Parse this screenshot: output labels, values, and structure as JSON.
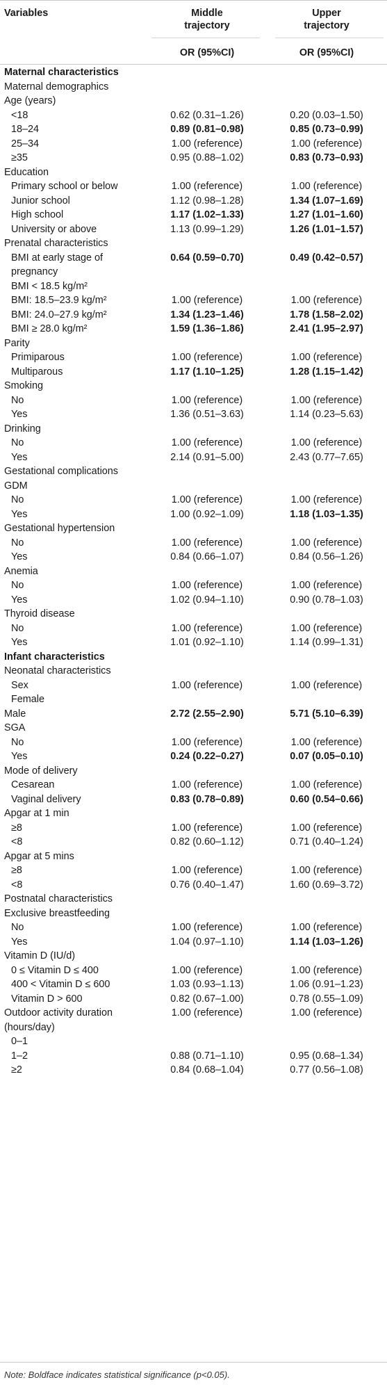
{
  "header": {
    "variables": "Variables",
    "col1_title_line1": "Middle",
    "col1_title_line2": "trajectory",
    "col2_title_line1": "Upper",
    "col2_title_line2": "trajectory",
    "col1_sub": "OR (95%CI)",
    "col2_sub": "OR (95%CI)"
  },
  "rows": [
    {
      "label": "Maternal characteristics",
      "section": true
    },
    {
      "label": "Maternal demographics"
    },
    {
      "label": "Age (years)"
    },
    {
      "label": "<18",
      "indent": true,
      "v1": "0.62 (0.31–1.26)",
      "v2": "0.20 (0.03–1.50)"
    },
    {
      "label": "18–24",
      "indent": true,
      "v1": "0.89 (0.81–0.98)",
      "v2": "0.85 (0.73–0.99)",
      "b1": true,
      "b2": true
    },
    {
      "label": "25–34",
      "indent": true,
      "v1": "1.00 (reference)",
      "v2": "1.00 (reference)"
    },
    {
      "label": "≥35",
      "indent": true,
      "v1": "0.95 (0.88–1.02)",
      "v2": "0.83 (0.73–0.93)",
      "b2": true
    },
    {
      "label": "Education"
    },
    {
      "label": "Primary school or below",
      "indent": true,
      "v1": "1.00 (reference)",
      "v2": "1.00 (reference)"
    },
    {
      "label": "Junior school",
      "indent": true,
      "v1": "1.12 (0.98–1.28)",
      "v2": "1.34 (1.07–1.69)",
      "b2": true
    },
    {
      "label": "High school",
      "indent": true,
      "v1": "1.17 (1.02–1.33)",
      "v2": "1.27 (1.01–1.60)",
      "b1": true,
      "b2": true
    },
    {
      "label": "University or above",
      "indent": true,
      "v1": "1.13 (0.99–1.29)",
      "v2": "1.26 (1.01–1.57)",
      "b2": true
    },
    {
      "label": "Prenatal characteristics"
    },
    {
      "label": "BMI at early stage of",
      "label2": "pregnancy",
      "indent": true,
      "v1": "0.64 (0.59–0.70)",
      "v2": "0.49 (0.42–0.57)",
      "b1": true,
      "b2": true
    },
    {
      "label": "BMI < 18.5 kg/m²",
      "indent": true
    },
    {
      "label": "BMI: 18.5–23.9 kg/m²",
      "indent": true,
      "v1": "1.00 (reference)",
      "v2": "1.00 (reference)"
    },
    {
      "label": "BMI: 24.0–27.9 kg/m²",
      "indent": true,
      "v1": "1.34 (1.23–1.46)",
      "v2": "1.78 (1.58–2.02)",
      "b1": true,
      "b2": true
    },
    {
      "label": "BMI ≥ 28.0 kg/m²",
      "indent": true,
      "v1": "1.59 (1.36–1.86)",
      "v2": "2.41 (1.95–2.97)",
      "b1": true,
      "b2": true
    },
    {
      "label": "Parity"
    },
    {
      "label": "Primiparous",
      "indent": true,
      "v1": "1.00 (reference)",
      "v2": "1.00 (reference)"
    },
    {
      "label": "Multiparous",
      "indent": true,
      "v1": "1.17 (1.10–1.25)",
      "v2": "1.28 (1.15–1.42)",
      "b1": true,
      "b2": true
    },
    {
      "label": "Smoking"
    },
    {
      "label": "No",
      "indent": true,
      "v1": "1.00 (reference)",
      "v2": "1.00 (reference)"
    },
    {
      "label": "Yes",
      "indent": true,
      "v1": "1.36 (0.51–3.63)",
      "v2": "1.14 (0.23–5.63)"
    },
    {
      "label": "Drinking"
    },
    {
      "label": "No",
      "indent": true,
      "v1": "1.00 (reference)",
      "v2": "1.00 (reference)"
    },
    {
      "label": "Yes",
      "indent": true,
      "v1": "2.14 (0.91–5.00)",
      "v2": "2.43 (0.77–7.65)"
    },
    {
      "label": "Gestational complications"
    },
    {
      "label": "GDM"
    },
    {
      "label": "No",
      "indent": true,
      "v1": "1.00 (reference)",
      "v2": "1.00 (reference)"
    },
    {
      "label": "Yes",
      "indent": true,
      "v1": "1.00 (0.92–1.09)",
      "v2": "1.18 (1.03–1.35)",
      "b2": true
    },
    {
      "label": "Gestational hypertension"
    },
    {
      "label": "No",
      "indent": true,
      "v1": "1.00 (reference)",
      "v2": "1.00 (reference)"
    },
    {
      "label": "Yes",
      "indent": true,
      "v1": "0.84 (0.66–1.07)",
      "v2": "0.84 (0.56–1.26)"
    },
    {
      "label": "Anemia"
    },
    {
      "label": "No",
      "indent": true,
      "v1": "1.00 (reference)",
      "v2": "1.00 (reference)"
    },
    {
      "label": "Yes",
      "indent": true,
      "v1": "1.02 (0.94–1.10)",
      "v2": "0.90 (0.78–1.03)"
    },
    {
      "label": "Thyroid disease"
    },
    {
      "label": "No",
      "indent": true,
      "v1": "1.00 (reference)",
      "v2": "1.00 (reference)"
    },
    {
      "label": "Yes",
      "indent": true,
      "v1": "1.01 (0.92–1.10)",
      "v2": "1.14 (0.99–1.31)"
    },
    {
      "label": "Infant characteristics",
      "section": true
    },
    {
      "label": "Neonatal characteristics"
    },
    {
      "label": "Sex",
      "label2": "Female",
      "indent": true,
      "v1": "1.00 (reference)",
      "v2": "1.00 (reference)"
    },
    {
      "label": "Male",
      "v1": "2.72 (2.55–2.90)",
      "v2": "5.71 (5.10–6.39)",
      "b1": true,
      "b2": true
    },
    {
      "label": "SGA"
    },
    {
      "label": "No",
      "indent": true,
      "v1": "1.00 (reference)",
      "v2": "1.00 (reference)"
    },
    {
      "label": "Yes",
      "indent": true,
      "v1": "0.24 (0.22–0.27)",
      "v2": "0.07 (0.05–0.10)",
      "b1": true,
      "b2": true
    },
    {
      "label": "Mode of delivery"
    },
    {
      "label": "Cesarean",
      "indent": true,
      "v1": "1.00 (reference)",
      "v2": "1.00 (reference)"
    },
    {
      "label": "Vaginal delivery",
      "indent": true,
      "v1": "0.83 (0.78–0.89)",
      "v2": "0.60 (0.54–0.66)",
      "b1": true,
      "b2": true
    },
    {
      "label": "Apgar at 1 min"
    },
    {
      "label": "≥8",
      "indent": true,
      "v1": "1.00 (reference)",
      "v2": "1.00 (reference)"
    },
    {
      "label": "<8",
      "indent": true,
      "v1": "0.82 (0.60–1.12)",
      "v2": "0.71 (0.40–1.24)"
    },
    {
      "label": "Apgar at 5 mins"
    },
    {
      "label": "≥8",
      "indent": true,
      "v1": "1.00 (reference)",
      "v2": "1.00 (reference)"
    },
    {
      "label": "<8",
      "indent": true,
      "v1": "0.76 (0.40–1.47)",
      "v2": "1.60 (0.69–3.72)"
    },
    {
      "label": "Postnatal characteristics"
    },
    {
      "label": "Exclusive breastfeeding"
    },
    {
      "label": "No",
      "indent": true,
      "v1": "1.00 (reference)",
      "v2": "1.00 (reference)"
    },
    {
      "label": "Yes",
      "indent": true,
      "v1": "1.04 (0.97–1.10)",
      "v2": "1.14 (1.03–1.26)",
      "b2": true
    },
    {
      "label": "Vitamin D (IU/d)"
    },
    {
      "label": "0 ≤ Vitamin D ≤ 400",
      "indent": true,
      "v1": "1.00 (reference)",
      "v2": "1.00 (reference)"
    },
    {
      "label": "400 < Vitamin D ≤ 600",
      "indent": true,
      "v1": "1.03 (0.93–1.13)",
      "v2": "1.06 (0.91–1.23)"
    },
    {
      "label": "Vitamin D > 600",
      "indent": true,
      "v1": "0.82 (0.67–1.00)",
      "v2": "0.78 (0.55–1.09)"
    },
    {
      "label": "Outdoor activity duration",
      "label2": "(hours/day)",
      "v1": "1.00 (reference)",
      "v2": "1.00 (reference)"
    },
    {
      "label": "0–1",
      "indent": true
    },
    {
      "label": "1–2",
      "indent": true,
      "v1": "0.88 (0.71–1.10)",
      "v2": "0.95 (0.68–1.34)"
    },
    {
      "label": "≥2",
      "indent": true,
      "v1": "0.84 (0.68–1.04)",
      "v2": "0.77 (0.56–1.08)"
    }
  ],
  "footnote": "Note: Boldface indicates statistical significance (p<0.05)."
}
